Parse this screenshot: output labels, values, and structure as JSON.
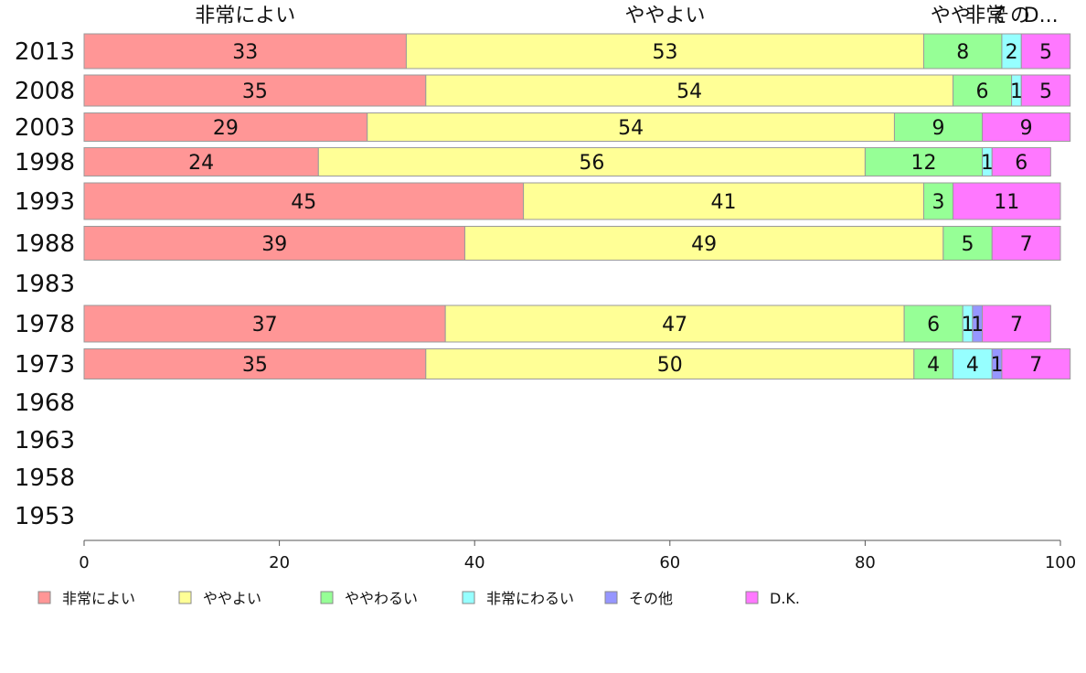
{
  "chart_data": {
    "type": "bar",
    "orientation": "horizontal",
    "stacked": true,
    "xlim": [
      0,
      100
    ],
    "x_ticks": [
      "0",
      "20",
      "40",
      "60",
      "80",
      "100"
    ],
    "categories": [
      "2013",
      "2008",
      "2003",
      "1998",
      "1993",
      "1988",
      "1983",
      "1978",
      "1973",
      "1968",
      "1963",
      "1958",
      "1953"
    ],
    "top_labels": [
      "非常によい",
      "ややよい",
      "やや",
      "非常",
      "その",
      "D..."
    ],
    "series": [
      {
        "name": "非常によい",
        "color": "#ff9696",
        "values": [
          33,
          35,
          29,
          24,
          45,
          39,
          null,
          37,
          35,
          null,
          null,
          null,
          null
        ]
      },
      {
        "name": "ややよい",
        "color": "#ffff96",
        "values": [
          53,
          54,
          54,
          56,
          41,
          49,
          null,
          47,
          50,
          null,
          null,
          null,
          null
        ]
      },
      {
        "name": "ややわるい",
        "color": "#96ff96",
        "values": [
          8,
          6,
          9,
          12,
          3,
          5,
          null,
          6,
          4,
          null,
          null,
          null,
          null
        ]
      },
      {
        "name": "非常にわるい",
        "color": "#96ffff",
        "values": [
          2,
          1,
          0,
          1,
          0,
          0,
          null,
          1,
          4,
          null,
          null,
          null,
          null
        ]
      },
      {
        "name": "その他",
        "color": "#9696ff",
        "values": [
          0,
          0,
          0,
          0,
          0,
          0,
          null,
          1,
          1,
          null,
          null,
          null,
          null
        ]
      },
      {
        "name": "D.K.",
        "color": "#ff78ff",
        "values": [
          5,
          5,
          9,
          6,
          11,
          7,
          null,
          7,
          7,
          null,
          null,
          null,
          null
        ]
      }
    ],
    "legend_position": "bottom",
    "grid": false
  }
}
